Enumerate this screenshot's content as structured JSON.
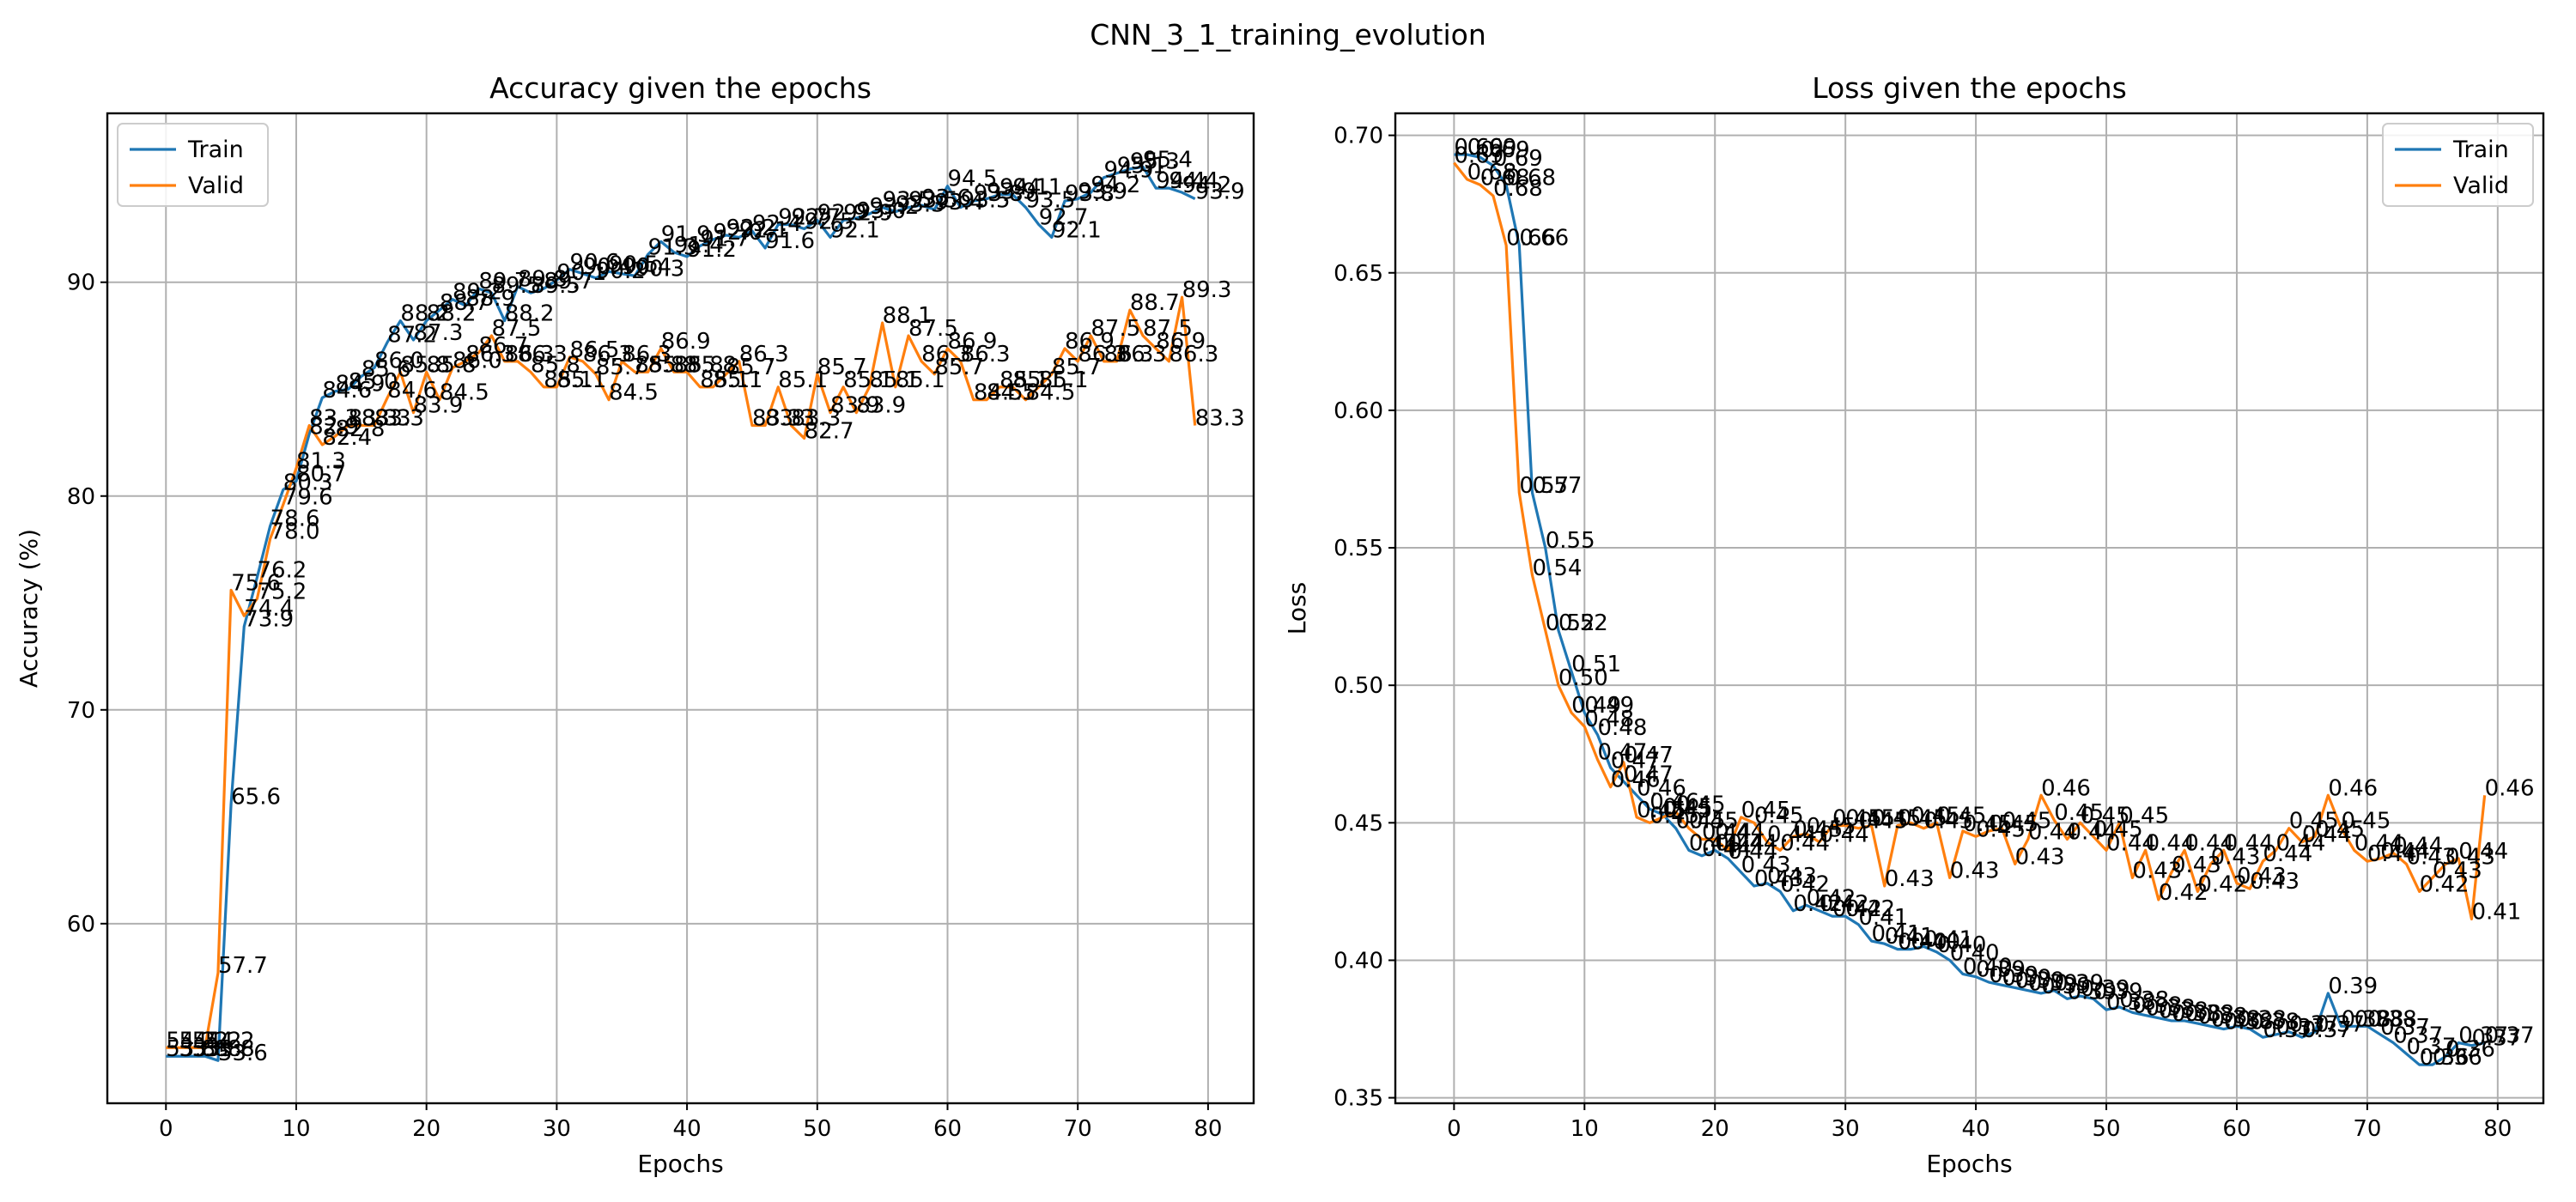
{
  "suptitle": "CNN_3_1_training_evolution",
  "colors": {
    "train": "#1f77b4",
    "valid": "#ff7f0e"
  },
  "chart_data": [
    {
      "type": "line",
      "title": "Accuracy given the epochs",
      "xlabel": "Epochs",
      "ylabel": "Accuracy (%)",
      "xlim": [
        -4.5,
        83.5
      ],
      "ylim": [
        51.6,
        97.9
      ],
      "xticks": [
        0,
        10,
        20,
        30,
        40,
        50,
        60,
        70,
        80
      ],
      "yticks": [
        60,
        70,
        80,
        90
      ],
      "tick_labels_y": [
        "60",
        "70",
        "80",
        "90"
      ],
      "label_decimals": 1,
      "grid": true,
      "legend": "upper left",
      "x": [
        0,
        1,
        2,
        3,
        4,
        5,
        6,
        7,
        8,
        9,
        10,
        11,
        12,
        13,
        14,
        15,
        16,
        17,
        18,
        19,
        20,
        21,
        22,
        23,
        24,
        25,
        26,
        27,
        28,
        29,
        30,
        31,
        32,
        33,
        34,
        35,
        36,
        37,
        38,
        39,
        40,
        41,
        42,
        43,
        44,
        45,
        46,
        47,
        48,
        49,
        50,
        51,
        52,
        53,
        54,
        55,
        56,
        57,
        58,
        59,
        60,
        61,
        62,
        63,
        64,
        65,
        66,
        67,
        68,
        69,
        70,
        71,
        72,
        73,
        74,
        75,
        76,
        77,
        78,
        79
      ],
      "series": [
        {
          "name": "Train",
          "values": [
            53.8,
            53.8,
            53.8,
            53.8,
            53.6,
            65.6,
            73.9,
            76.2,
            78.6,
            80.3,
            80.7,
            82.9,
            84.6,
            84.9,
            85.0,
            85.6,
            86.0,
            87.2,
            88.2,
            87.3,
            88.2,
            88.7,
            89.2,
            88.9,
            89.7,
            89.5,
            88.2,
            89.8,
            89.5,
            89.7,
            90.1,
            90.6,
            90.4,
            90.2,
            90.5,
            90.4,
            90.3,
            91.3,
            91.9,
            91.4,
            91.2,
            91.7,
            92.0,
            92.2,
            92.1,
            92.4,
            91.6,
            92.7,
            92.7,
            92.5,
            92.9,
            92.1,
            92.9,
            93.0,
            93.2,
            93.5,
            93.3,
            93.5,
            93.6,
            93.4,
            94.5,
            93.5,
            93.8,
            93.9,
            94.1,
            94.1,
            93.5,
            92.7,
            92.1,
            93.8,
            93.9,
            94.2,
            94.9,
            95.1,
            95.3,
            95.4,
            94.4,
            94.4,
            94.2,
            93.9
          ]
        },
        {
          "name": "Valid",
          "values": [
            54.2,
            54.2,
            54.2,
            54.2,
            57.7,
            75.6,
            74.4,
            75.2,
            78.0,
            79.6,
            81.3,
            83.3,
            82.4,
            82.8,
            83.3,
            83.3,
            83.3,
            84.6,
            85.8,
            83.9,
            85.8,
            84.5,
            86.0,
            86.3,
            86.7,
            87.5,
            86.3,
            86.3,
            85.8,
            85.1,
            85.1,
            86.5,
            86.3,
            85.7,
            84.5,
            86.3,
            85.8,
            85.8,
            86.9,
            85.8,
            85.8,
            85.1,
            85.1,
            85.7,
            86.3,
            83.3,
            83.3,
            85.1,
            83.3,
            82.7,
            85.7,
            83.9,
            85.1,
            83.9,
            85.1,
            88.1,
            85.1,
            87.5,
            86.3,
            85.7,
            86.9,
            86.3,
            84.5,
            84.5,
            85.1,
            85.1,
            84.5,
            85.1,
            85.7,
            86.9,
            86.3,
            87.5,
            86.3,
            86.3,
            88.7,
            87.5,
            86.9,
            86.3,
            89.3,
            83.3
          ]
        }
      ]
    },
    {
      "type": "line",
      "title": "Loss given the epochs",
      "xlabel": "Epochs",
      "ylabel": "Loss",
      "xlim": [
        -4.5,
        83.5
      ],
      "ylim": [
        0.348,
        0.708
      ],
      "xticks": [
        0,
        10,
        20,
        30,
        40,
        50,
        60,
        70,
        80
      ],
      "yticks": [
        0.35,
        0.4,
        0.45,
        0.5,
        0.55,
        0.6,
        0.65,
        0.7
      ],
      "tick_labels_y": [
        "0.35",
        "0.40",
        "0.45",
        "0.50",
        "0.55",
        "0.60",
        "0.65",
        "0.70"
      ],
      "label_decimals": 2,
      "grid": true,
      "legend": "upper right",
      "x": [
        0,
        1,
        2,
        3,
        4,
        5,
        6,
        7,
        8,
        9,
        10,
        11,
        12,
        13,
        14,
        15,
        16,
        17,
        18,
        19,
        20,
        21,
        22,
        23,
        24,
        25,
        26,
        27,
        28,
        29,
        30,
        31,
        32,
        33,
        34,
        35,
        36,
        37,
        38,
        39,
        40,
        41,
        42,
        43,
        44,
        45,
        46,
        47,
        48,
        49,
        50,
        51,
        52,
        53,
        54,
        55,
        56,
        57,
        58,
        59,
        60,
        61,
        62,
        63,
        64,
        65,
        66,
        67,
        68,
        69,
        70,
        71,
        72,
        73,
        74,
        75,
        76,
        77,
        78,
        79
      ],
      "series": [
        {
          "name": "Train",
          "values": [
            0.693,
            0.693,
            0.692,
            0.689,
            0.682,
            0.66,
            0.57,
            0.55,
            0.52,
            0.505,
            0.49,
            0.482,
            0.47,
            0.465,
            0.46,
            0.455,
            0.453,
            0.448,
            0.44,
            0.438,
            0.44,
            0.437,
            0.432,
            0.427,
            0.428,
            0.425,
            0.418,
            0.42,
            0.418,
            0.416,
            0.416,
            0.413,
            0.407,
            0.406,
            0.404,
            0.404,
            0.405,
            0.403,
            0.4,
            0.395,
            0.394,
            0.392,
            0.391,
            0.39,
            0.389,
            0.388,
            0.389,
            0.386,
            0.387,
            0.386,
            0.382,
            0.383,
            0.381,
            0.38,
            0.379,
            0.378,
            0.378,
            0.377,
            0.376,
            0.375,
            0.376,
            0.375,
            0.372,
            0.373,
            0.374,
            0.372,
            0.374,
            0.388,
            0.376,
            0.376,
            0.376,
            0.373,
            0.37,
            0.366,
            0.362,
            0.362,
            0.365,
            0.37,
            0.369,
            0.37
          ]
        },
        {
          "name": "Valid",
          "values": [
            0.69,
            0.684,
            0.682,
            0.678,
            0.66,
            0.57,
            0.54,
            0.52,
            0.5,
            0.49,
            0.485,
            0.473,
            0.463,
            0.472,
            0.452,
            0.45,
            0.452,
            0.454,
            0.448,
            0.444,
            0.444,
            0.44,
            0.452,
            0.45,
            0.443,
            0.44,
            0.445,
            0.446,
            0.443,
            0.449,
            0.449,
            0.448,
            0.449,
            0.427,
            0.449,
            0.45,
            0.448,
            0.45,
            0.43,
            0.447,
            0.445,
            0.447,
            0.448,
            0.435,
            0.444,
            0.46,
            0.451,
            0.444,
            0.45,
            0.445,
            0.44,
            0.45,
            0.43,
            0.44,
            0.422,
            0.432,
            0.44,
            0.425,
            0.435,
            0.44,
            0.428,
            0.426,
            0.436,
            0.44,
            0.448,
            0.443,
            0.445,
            0.46,
            0.448,
            0.44,
            0.436,
            0.437,
            0.439,
            0.435,
            0.425,
            0.43,
            0.435,
            0.437,
            0.415,
            0.46
          ]
        }
      ]
    }
  ]
}
